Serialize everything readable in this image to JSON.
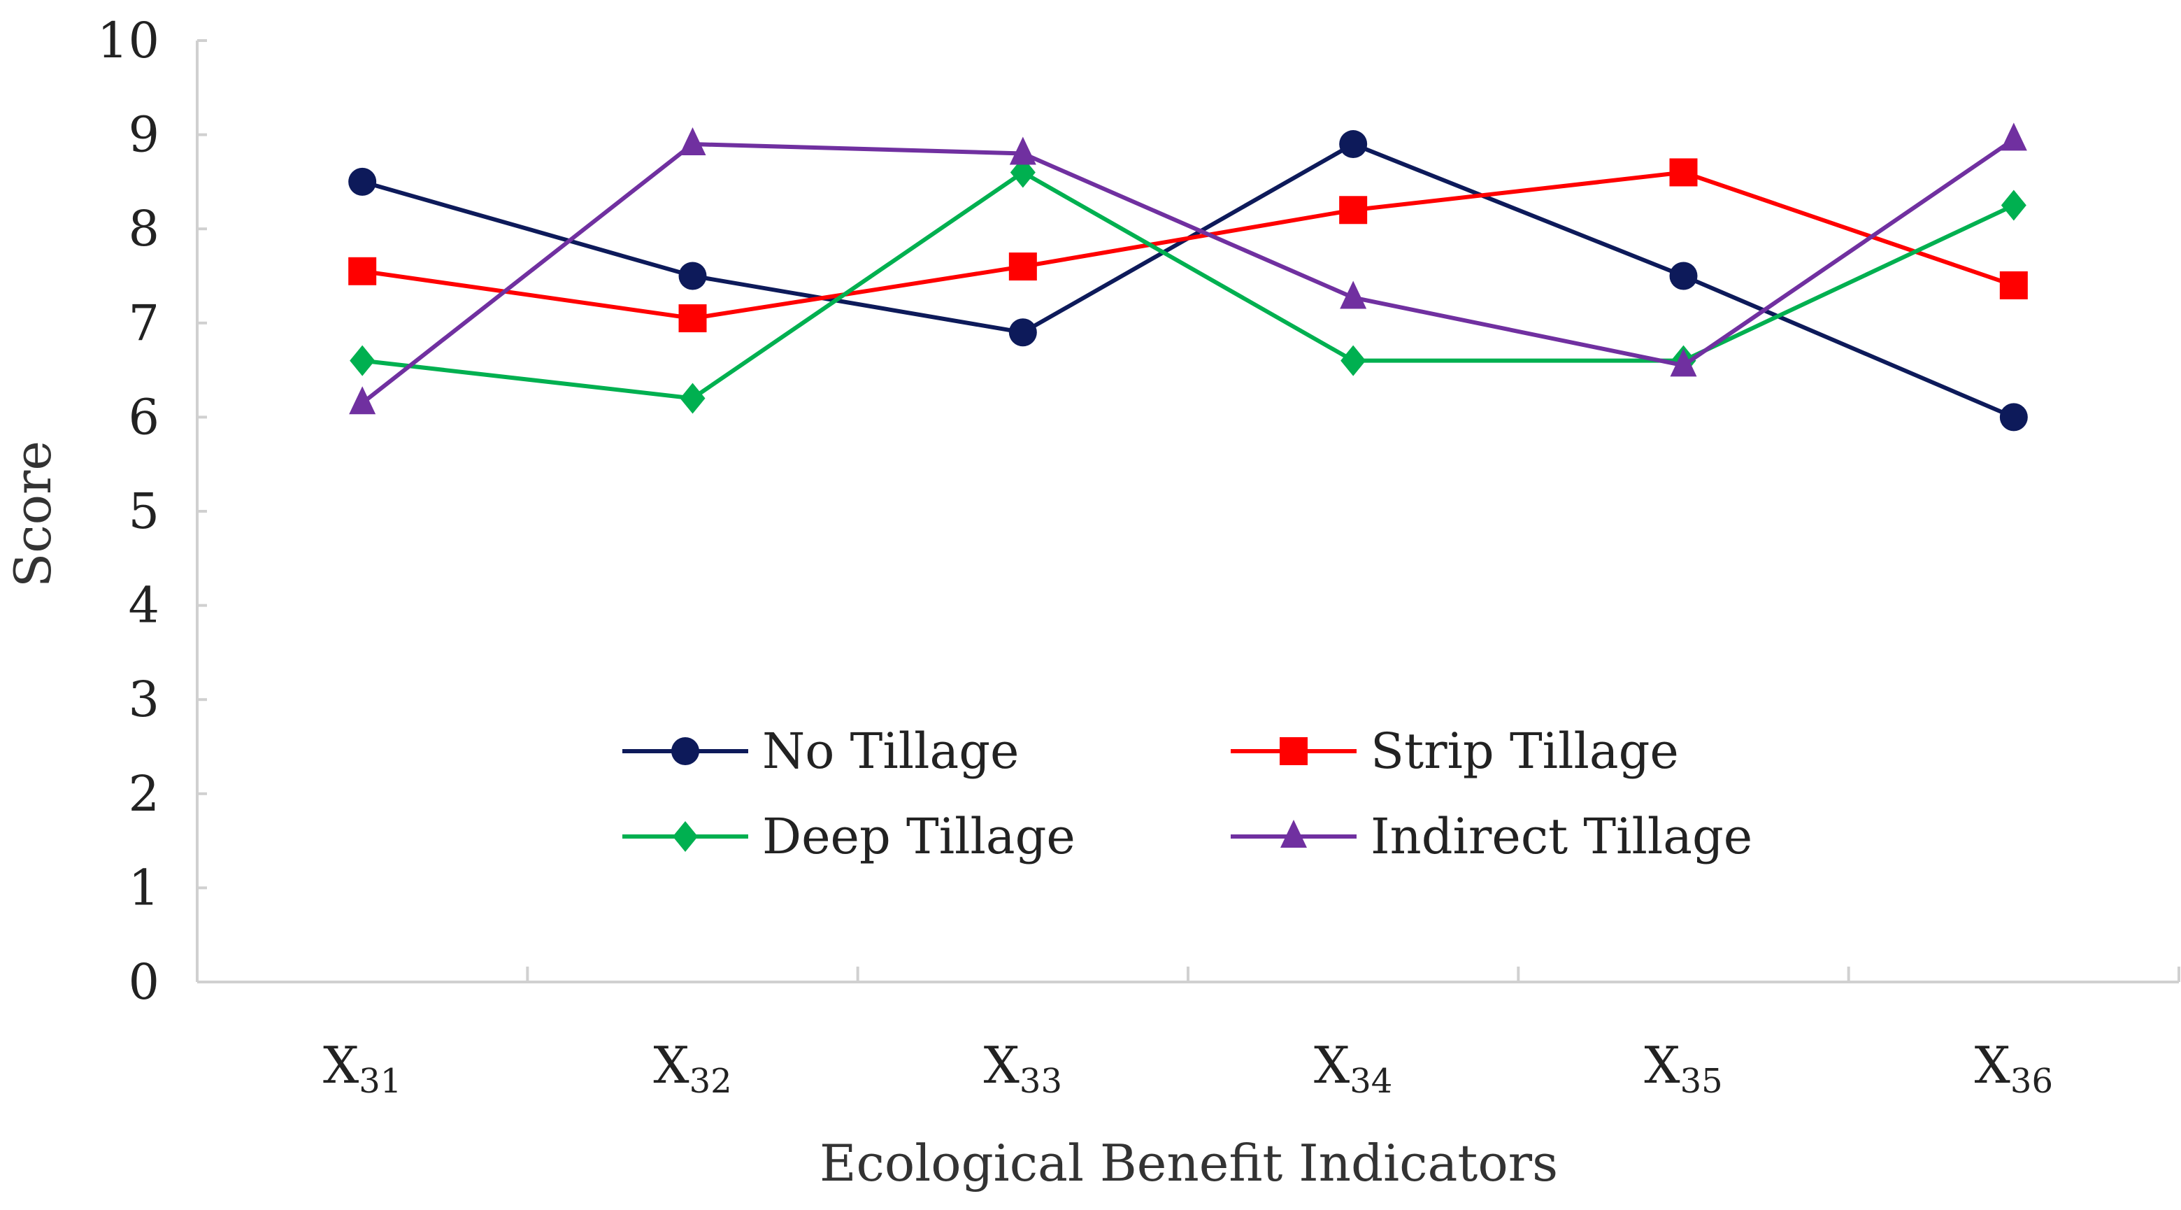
{
  "chart_data": {
    "type": "line",
    "title": "",
    "xlabel": "Ecological Benefit Indicators",
    "ylabel": "Score",
    "ylim": [
      0,
      10
    ],
    "yticks": [
      0,
      1,
      2,
      3,
      4,
      5,
      6,
      7,
      8,
      9,
      10
    ],
    "categories": [
      {
        "base": "X",
        "sub": "31"
      },
      {
        "base": "X",
        "sub": "32"
      },
      {
        "base": "X",
        "sub": "33"
      },
      {
        "base": "X",
        "sub": "34"
      },
      {
        "base": "X",
        "sub": "35"
      },
      {
        "base": "X",
        "sub": "36"
      }
    ],
    "legend_position": "center",
    "series": [
      {
        "name": "No Tillage",
        "color": "#0d1a5a",
        "marker": "circle",
        "values": [
          8.5,
          7.5,
          6.9,
          8.9,
          7.5,
          6.0
        ]
      },
      {
        "name": "Strip Tillage",
        "color": "#ff0000",
        "marker": "square",
        "values": [
          7.55,
          7.05,
          7.6,
          8.2,
          8.6,
          7.4
        ]
      },
      {
        "name": "Deep Tillage",
        "color": "#00b050",
        "marker": "diamond",
        "values": [
          6.6,
          6.2,
          8.6,
          6.6,
          6.6,
          8.25
        ]
      },
      {
        "name": "Indirect Tillage",
        "color": "#7030a0",
        "marker": "triangle",
        "values": [
          6.15,
          8.9,
          8.8,
          7.27,
          6.55,
          8.95
        ]
      }
    ]
  }
}
